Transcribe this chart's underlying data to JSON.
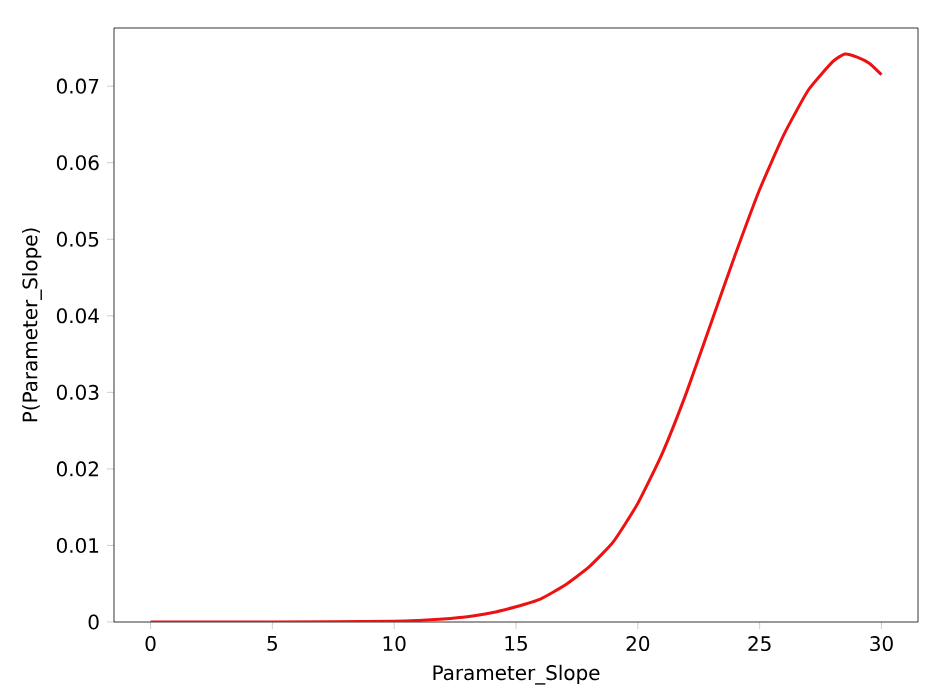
{
  "chart_data": {
    "type": "line",
    "xlabel": "Parameter_Slope",
    "ylabel": "P(Parameter_Slope)",
    "xlim": [
      -1.5,
      31.5
    ],
    "xticks": [
      0,
      5,
      10,
      15,
      20,
      25,
      30
    ],
    "ylim": [
      0,
      0.0776
    ],
    "yticks": [
      0,
      0.01,
      0.02,
      0.03,
      0.04,
      0.05,
      0.06,
      0.07
    ],
    "series": [
      {
        "color": "#ee1111",
        "x": [
          0,
          5,
          10,
          11,
          12,
          13,
          14,
          15,
          16,
          17,
          18,
          19,
          20,
          21,
          22,
          23,
          24,
          25,
          26,
          27,
          28,
          28.5,
          29,
          29.5,
          30
        ],
        "values": [
          0,
          0,
          0.0001,
          0.0002,
          0.0004,
          0.0007,
          0.0012,
          0.002,
          0.003,
          0.0048,
          0.0072,
          0.0105,
          0.0155,
          0.022,
          0.03,
          0.039,
          0.048,
          0.0565,
          0.0637,
          0.0695,
          0.0732,
          0.0742,
          0.0738,
          0.073,
          0.0715
        ]
      }
    ]
  }
}
